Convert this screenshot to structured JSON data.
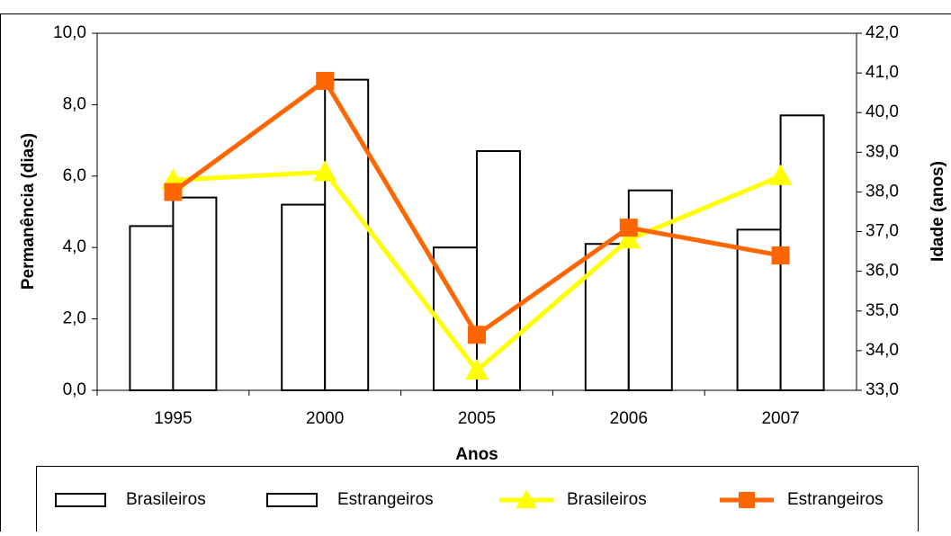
{
  "chart_data": {
    "type": "bar",
    "x_label": "Anos",
    "y_label": "Permanência (dias)",
    "y2_label": "Idade (anos)",
    "categories": [
      "1995",
      "2000",
      "2005",
      "2006",
      "2007"
    ],
    "series": [
      {
        "name": "Brasileiros",
        "color": "#ffffff",
        "values": [
          4.6,
          5.2,
          4.0,
          4.1,
          4.5
        ]
      },
      {
        "name": "Estrangeiros",
        "color": "#ffffff",
        "values": [
          5.4,
          8.7,
          6.7,
          5.6,
          7.7
        ]
      },
      {
        "name": "Brasileiros",
        "type": "line",
        "axis": "y2",
        "marker": "triangle",
        "color": "#ffff00",
        "values": [
          38.3,
          38.5,
          33.5,
          36.8,
          38.4
        ]
      },
      {
        "name": "Estrangeiros",
        "type": "line",
        "axis": "y2",
        "marker": "square",
        "color": "#ff6600",
        "values": [
          38.0,
          40.8,
          34.4,
          37.1,
          36.4
        ]
      }
    ],
    "ylim": [
      0,
      10
    ],
    "yticks": [
      {
        "value": 0,
        "label": "0,0"
      },
      {
        "value": 2,
        "label": "2,0"
      },
      {
        "value": 4,
        "label": "4,0"
      },
      {
        "value": 6,
        "label": "6,0"
      },
      {
        "value": 8,
        "label": "8,0"
      },
      {
        "value": 10,
        "label": "10,0"
      }
    ],
    "y2lim": [
      33,
      42
    ],
    "y2ticks": [
      {
        "value": 33,
        "label": "33,0"
      },
      {
        "value": 34,
        "label": "34,0"
      },
      {
        "value": 35,
        "label": "35,0"
      },
      {
        "value": 36,
        "label": "36,0"
      },
      {
        "value": 37,
        "label": "37,0"
      },
      {
        "value": 38,
        "label": "38,0"
      },
      {
        "value": 39,
        "label": "39,0"
      },
      {
        "value": 40,
        "label": "40,0"
      },
      {
        "value": 41,
        "label": "41,0"
      },
      {
        "value": 42,
        "label": "42,0"
      }
    ],
    "legend": "bottom"
  }
}
